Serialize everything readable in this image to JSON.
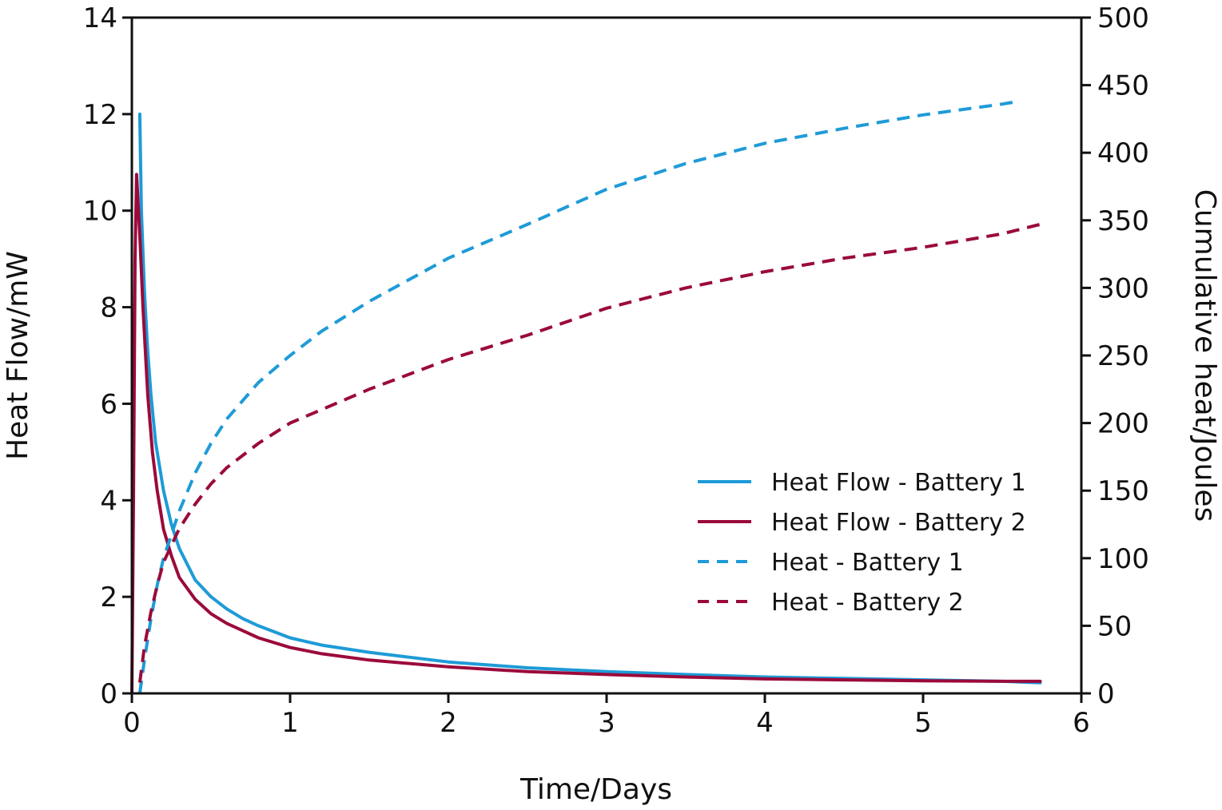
{
  "chart_data": {
    "type": "line",
    "title": "",
    "xlabel": "Time/Days",
    "ylabel_left": "Heat Flow/mW",
    "ylabel_right": "Cumulative heat/Joules",
    "xlim": [
      0,
      6
    ],
    "ylim_left": [
      0,
      14
    ],
    "ylim_right": [
      0,
      500
    ],
    "x_ticks": [
      0,
      1,
      2,
      3,
      4,
      5,
      6
    ],
    "y_ticks_left": [
      0,
      2,
      4,
      6,
      8,
      10,
      12,
      14
    ],
    "y_ticks_right": [
      0,
      50,
      100,
      150,
      200,
      250,
      300,
      350,
      400,
      450,
      500
    ],
    "grid": false,
    "legend_position": "center-right",
    "series": [
      {
        "name": "Heat Flow - Battery 1",
        "axis": "left",
        "color": "#1e9bd7",
        "dash": "solid",
        "x": [
          0.05,
          0.06,
          0.08,
          0.1,
          0.12,
          0.15,
          0.2,
          0.25,
          0.3,
          0.4,
          0.5,
          0.6,
          0.7,
          0.8,
          1.0,
          1.2,
          1.5,
          2.0,
          2.5,
          3.0,
          3.5,
          4.0,
          4.5,
          5.0,
          5.5,
          5.74
        ],
        "y": [
          12.0,
          10.0,
          8.3,
          7.1,
          6.2,
          5.2,
          4.2,
          3.5,
          3.0,
          2.35,
          2.0,
          1.75,
          1.55,
          1.4,
          1.15,
          1.0,
          0.85,
          0.65,
          0.53,
          0.45,
          0.39,
          0.34,
          0.31,
          0.28,
          0.25,
          0.22
        ]
      },
      {
        "name": "Heat Flow - Battery 2",
        "axis": "left",
        "color": "#9b0a3b",
        "dash": "solid",
        "x": [
          0.0,
          0.01,
          0.02,
          0.03,
          0.05,
          0.07,
          0.1,
          0.13,
          0.16,
          0.2,
          0.25,
          0.3,
          0.4,
          0.5,
          0.6,
          0.7,
          0.8,
          1.0,
          1.2,
          1.5,
          2.0,
          2.5,
          3.0,
          3.5,
          4.0,
          4.5,
          5.0,
          5.5,
          5.74
        ],
        "y": [
          0.0,
          4.0,
          9.0,
          10.75,
          9.5,
          8.0,
          6.2,
          5.0,
          4.2,
          3.4,
          2.85,
          2.4,
          1.95,
          1.65,
          1.45,
          1.3,
          1.15,
          0.95,
          0.82,
          0.69,
          0.55,
          0.45,
          0.39,
          0.34,
          0.3,
          0.28,
          0.26,
          0.25,
          0.25
        ]
      },
      {
        "name": "Heat - Battery 1",
        "axis": "right",
        "color": "#1e9bd7",
        "dash": "dashed",
        "x": [
          0.05,
          0.08,
          0.12,
          0.16,
          0.2,
          0.3,
          0.4,
          0.5,
          0.6,
          0.8,
          1.0,
          1.2,
          1.5,
          2.0,
          2.5,
          3.0,
          3.5,
          4.0,
          4.5,
          5.0,
          5.5,
          5.6
        ],
        "y": [
          0,
          25,
          55,
          80,
          100,
          135,
          163,
          185,
          203,
          230,
          250,
          268,
          290,
          322,
          347,
          373,
          392,
          407,
          418,
          428,
          436,
          438
        ]
      },
      {
        "name": "Heat - Battery 2",
        "axis": "right",
        "color": "#9b0a3b",
        "dash": "dashed",
        "x": [
          0.05,
          0.08,
          0.12,
          0.16,
          0.2,
          0.3,
          0.4,
          0.5,
          0.6,
          0.8,
          1.0,
          1.2,
          1.5,
          2.0,
          2.5,
          3.0,
          3.5,
          4.0,
          4.5,
          5.0,
          5.5,
          5.74
        ],
        "y": [
          8,
          35,
          60,
          80,
          97,
          122,
          140,
          155,
          167,
          185,
          200,
          210,
          225,
          247,
          265,
          285,
          300,
          312,
          322,
          330,
          340,
          347
        ]
      }
    ]
  }
}
